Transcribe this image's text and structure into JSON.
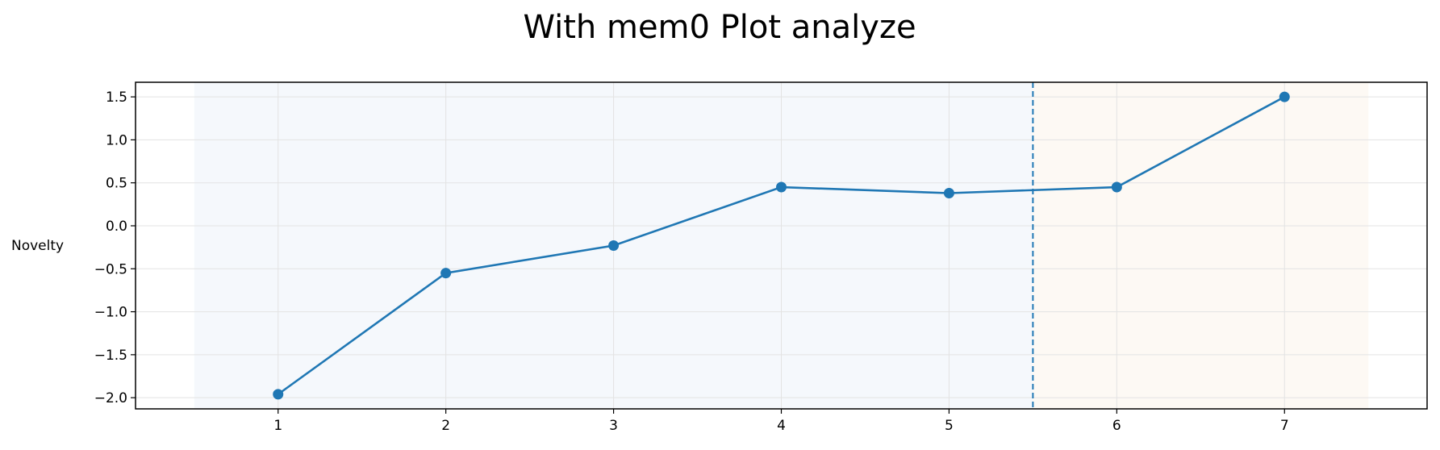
{
  "chart_data": {
    "type": "line",
    "title": "With mem0 Plot analyze",
    "xlabel": "",
    "ylabel": "Novelty",
    "x": [
      1,
      2,
      3,
      4,
      5,
      6,
      7
    ],
    "series": [
      {
        "values": [
          -1.96,
          -0.55,
          -0.23,
          0.45,
          0.38,
          0.45,
          1.5
        ]
      }
    ],
    "xlim": [
      0.15,
      7.85
    ],
    "ylim": [
      -2.13,
      1.67
    ],
    "xticks": [
      "1",
      "2",
      "3",
      "4",
      "5",
      "6",
      "7"
    ],
    "yticks": [
      "1.5",
      "1.0",
      "0.5",
      "0.0",
      "−0.5",
      "−1.0",
      "−1.5",
      "−2.0"
    ],
    "ytick_values": [
      1.5,
      1.0,
      0.5,
      0.0,
      -0.5,
      -1.0,
      -1.5,
      -2.0
    ],
    "shaded_regions": [
      {
        "x_start": 0.5,
        "x_end": 5.5,
        "color": "#f5f8fc"
      },
      {
        "x_start": 5.5,
        "x_end": 7.5,
        "color": "#fdf9f4"
      }
    ],
    "vertical_line": {
      "x": 5.5,
      "style": "dashed",
      "color": "#1f77b4"
    },
    "grid": true,
    "line_color": "#1f77b4"
  }
}
